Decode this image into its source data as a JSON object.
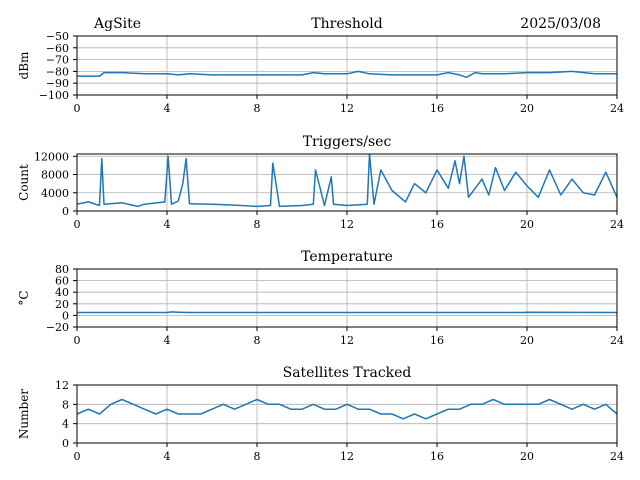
{
  "header": {
    "site": "AgSite",
    "date": "2025/03/08"
  },
  "colors": {
    "series": "#1f77b4",
    "grid": "#b0b0b0",
    "frame": "#000000"
  },
  "chart_data": [
    {
      "type": "line",
      "title": "Threshold",
      "ylabel": "dBm",
      "xlim": [
        0,
        24
      ],
      "ylim": [
        -100,
        -50
      ],
      "xticks": [
        0,
        4,
        8,
        12,
        16,
        20,
        24
      ],
      "xtick_labels": [
        "0",
        "4",
        "8",
        "12",
        "16",
        "20",
        "24"
      ],
      "yticks": [
        -100,
        -90,
        -80,
        -70,
        -60,
        -50
      ],
      "ytick_labels": [
        "−100",
        "−90",
        "−80",
        "−70",
        "−60",
        "−50"
      ],
      "grid": true,
      "x": [
        0,
        1,
        1.2,
        2,
        3,
        4,
        4.5,
        5,
        6,
        7,
        8,
        9,
        10,
        10.5,
        11,
        12,
        12.5,
        13,
        14,
        15,
        16,
        16.5,
        17,
        17.3,
        17.7,
        18,
        19,
        20,
        21,
        22,
        23,
        24
      ],
      "y": [
        -84,
        -84,
        -81,
        -81,
        -82,
        -82,
        -83,
        -82,
        -83,
        -83,
        -83,
        -83,
        -83,
        -81,
        -82,
        -82,
        -80,
        -82,
        -83,
        -83,
        -83,
        -81,
        -83,
        -85,
        -81,
        -82,
        -82,
        -81,
        -81,
        -80,
        -82,
        -82
      ]
    },
    {
      "type": "line",
      "title": "Triggers/sec",
      "ylabel": "Count",
      "xlim": [
        0,
        24
      ],
      "ylim": [
        0,
        12500
      ],
      "xticks": [
        0,
        4,
        8,
        12,
        16,
        20,
        24
      ],
      "xtick_labels": [
        "0",
        "4",
        "8",
        "12",
        "16",
        "20",
        "24"
      ],
      "yticks": [
        0,
        4000,
        8000,
        12000
      ],
      "ytick_labels": [
        "0",
        "4000",
        "8000",
        "12000"
      ],
      "grid": true,
      "x": [
        0,
        0.5,
        1.0,
        1.1,
        1.2,
        2,
        2.7,
        3,
        3.9,
        4.05,
        4.2,
        4.5,
        4.7,
        4.85,
        5,
        6,
        7,
        8,
        8.6,
        8.7,
        9,
        10,
        10.5,
        10.6,
        11,
        11.3,
        11.4,
        12,
        12.9,
        13.0,
        13.2,
        13.5,
        14,
        14.6,
        15,
        15.5,
        16,
        16.5,
        16.8,
        17,
        17.2,
        17.4,
        18,
        18.3,
        18.6,
        19,
        19.5,
        20,
        20.5,
        21,
        21.5,
        22,
        22.5,
        23,
        23.5,
        24
      ],
      "y": [
        1500,
        2000,
        1200,
        11500,
        1500,
        1800,
        1000,
        1500,
        2000,
        12000,
        1500,
        2200,
        6000,
        11500,
        1600,
        1500,
        1300,
        1000,
        1200,
        10500,
        1000,
        1200,
        1500,
        9000,
        1200,
        7500,
        1500,
        1200,
        1500,
        12500,
        1500,
        9000,
        4500,
        2000,
        6000,
        4000,
        9000,
        5000,
        11000,
        6000,
        12000,
        3000,
        7000,
        3500,
        9500,
        4500,
        8500,
        5500,
        3000,
        9000,
        3500,
        7000,
        4000,
        3500,
        8500,
        3000
      ]
    },
    {
      "type": "line",
      "title": "Temperature",
      "ylabel": "°C",
      "xlim": [
        0,
        24
      ],
      "ylim": [
        -20,
        80
      ],
      "xticks": [
        0,
        4,
        8,
        12,
        16,
        20,
        24
      ],
      "xtick_labels": [
        "0",
        "4",
        "8",
        "12",
        "16",
        "20",
        "24"
      ],
      "yticks": [
        -20,
        0,
        20,
        40,
        60,
        80
      ],
      "ytick_labels": [
        "−20",
        "0",
        "20",
        "40",
        "60",
        "80"
      ],
      "grid": true,
      "x": [
        0,
        4,
        4.2,
        4.5,
        5,
        8,
        12,
        16,
        19.8,
        20,
        24
      ],
      "y": [
        5,
        5,
        6,
        5.5,
        5,
        5,
        5,
        5,
        5,
        5.5,
        5
      ]
    },
    {
      "type": "line",
      "title": "Satellites Tracked",
      "ylabel": "Number",
      "xlim": [
        0,
        24
      ],
      "ylim": [
        0,
        12
      ],
      "xticks": [
        0,
        4,
        8,
        12,
        16,
        20,
        24
      ],
      "xtick_labels": [
        "0",
        "4",
        "8",
        "12",
        "16",
        "20",
        "24"
      ],
      "yticks": [
        0,
        4,
        8,
        12
      ],
      "ytick_labels": [
        "0",
        "4",
        "8",
        "12"
      ],
      "grid": true,
      "x": [
        0,
        0.5,
        1,
        1.5,
        2,
        2.5,
        3,
        3.5,
        4,
        4.5,
        5,
        5.5,
        6,
        6.5,
        7,
        7.5,
        8,
        8.5,
        9,
        9.5,
        10,
        10.5,
        11,
        11.5,
        12,
        12.5,
        13,
        13.5,
        14,
        14.5,
        15,
        15.5,
        16,
        16.5,
        17,
        17.5,
        18,
        18.5,
        19,
        19.5,
        20,
        20.5,
        21,
        21.5,
        22,
        22.5,
        23,
        23.5,
        24
      ],
      "y": [
        6,
        7,
        6,
        8,
        9,
        8,
        7,
        6,
        7,
        6,
        6,
        6,
        7,
        8,
        7,
        8,
        9,
        8,
        8,
        7,
        7,
        8,
        7,
        7,
        8,
        7,
        7,
        6,
        6,
        5,
        6,
        5,
        6,
        7,
        7,
        8,
        8,
        9,
        8,
        8,
        8,
        8,
        9,
        8,
        7,
        8,
        7,
        8,
        6
      ]
    }
  ]
}
